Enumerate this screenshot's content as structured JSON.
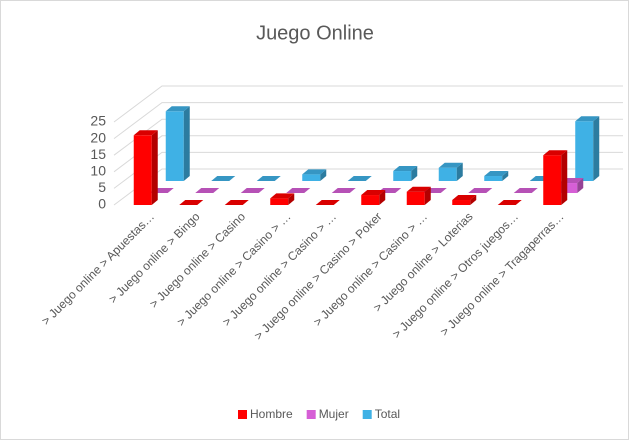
{
  "chart_data": {
    "type": "bar3d",
    "title": "Juego Online",
    "categories": [
      "> Juego online > Apuestas…",
      "> Juego online > Bingo",
      "> Juego online > Casino",
      "> Juego online > Casino > …",
      "> Juego online > Casino > …",
      "> Juego online > Casino > Poker",
      "> Juego online > Casino > …",
      "> Juego online > Loterias",
      "> Juego online > Otros juegos…",
      "> Juego online > Tragaperras…"
    ],
    "series": [
      {
        "name": "Hombre",
        "color": "#ff0000",
        "values": [
          21,
          0,
          0,
          2,
          0,
          3,
          4,
          1.5,
          0,
          15
        ]
      },
      {
        "name": "Mujer",
        "color": "#d65fd6",
        "values": [
          0,
          0,
          0,
          0,
          0,
          0,
          0,
          0,
          0,
          3
        ]
      },
      {
        "name": "Total",
        "color": "#3fb1e5",
        "values": [
          21,
          0,
          0,
          2,
          0,
          3,
          4,
          1.5,
          0,
          18
        ]
      }
    ],
    "ylim": [
      0,
      25
    ],
    "yticks": [
      0,
      5,
      10,
      15,
      20,
      25
    ],
    "grid": true,
    "legend": "bottom"
  }
}
